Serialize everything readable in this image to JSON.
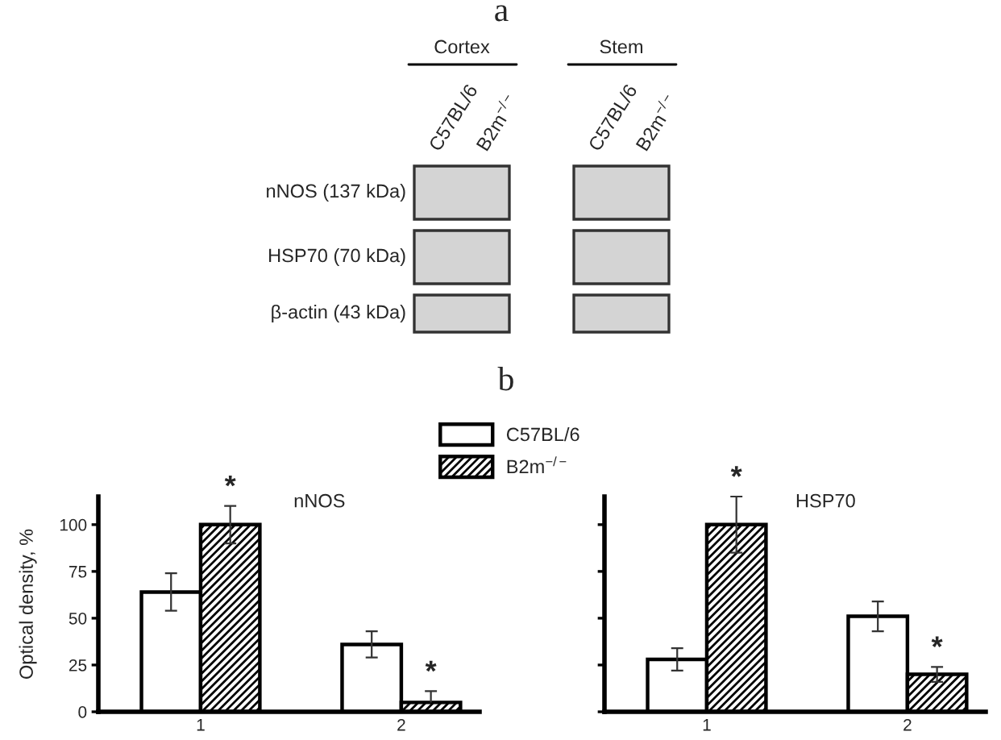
{
  "chart_data": [
    {
      "type": "other",
      "title": "a",
      "annotations": [
        "Cortex",
        "Stem"
      ],
      "categories": [
        "C57BL/6",
        "B2m$^{−/−}$",
        "C57BL/6",
        "B2m$^{−/−}$"
      ],
      "y_categories": [
        "nNOS (137 kDa)",
        "HSP70 (70 kDa)",
        "β-actin (43 kDa)"
      ]
    },
    {
      "type": "bar",
      "title": "nNOS",
      "ylabel": "Optical density, %",
      "categories": [
        "1",
        "2"
      ],
      "series": [
        {
          "name": "C57BL/6",
          "color": "#ffffff",
          "values": [
            64,
            36
          ],
          "errors": [
            10,
            7
          ]
        },
        {
          "name": "B2m$^{−/−}$",
          "color": "#000000",
          "values": [
            100,
            5
          ],
          "errors": [
            10,
            [
              5,
              11
            ]
          ]
        }
      ],
      "ylim": [
        0,
        115
      ],
      "yticks": [
        0,
        25,
        50,
        75,
        100
      ],
      "legend": "top right",
      "annotations": [
        "b",
        {
          "text": "*",
          "x": "1",
          "y": 100
        },
        {
          "text": "*",
          "x": "2",
          "y": 5
        }
      ]
    },
    {
      "type": "bar",
      "title": "HSP70",
      "categories": [
        "1",
        "2"
      ],
      "series": [
        {
          "color": "#ffffff",
          "values": [
            28,
            51
          ],
          "errors": [
            6,
            8
          ]
        },
        {
          "color": "#000000",
          "values": [
            100,
            20
          ],
          "errors": [
            15,
            4
          ]
        }
      ],
      "ylim": [
        0,
        115
      ],
      "yticks": [
        0,
        25,
        50,
        75,
        100
      ],
      "tick_labels": "x",
      "annotations": [
        {
          "text": "*",
          "x": "1",
          "y": 100
        },
        {
          "text": "*",
          "x": "2",
          "y": 20
        }
      ]
    }
  ]
}
